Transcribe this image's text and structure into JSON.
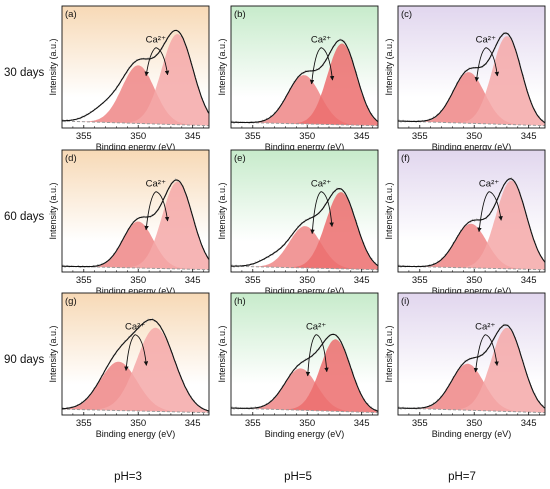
{
  "figure": {
    "row_labels": [
      "30 days",
      "60 days",
      "90 days"
    ],
    "col_labels": [
      "pH=3",
      "pH=5",
      "pH=7"
    ],
    "colors": {
      "bg_ph3": "#f7d9b6",
      "bg_ph5": "#c7ebcb",
      "bg_ph7": "#e1d6ee",
      "peak_left": "#ef8686",
      "peak_right": "#f4a8a8",
      "peak_strong": "#ec6d6d",
      "envelope": "#111111",
      "baseline": "#9a9a9a",
      "raw": "#b4b4b4"
    }
  },
  "chart_data": [
    {
      "panel": "(a)",
      "type": "area",
      "title": "",
      "xlabel": "Binding energy (eV)",
      "ylabel": "Intensity (a.u.)",
      "xlim": [
        357,
        343.5
      ],
      "ylim": [
        0,
        1.05
      ],
      "x_reversed": true,
      "xticks": [
        355,
        350,
        345
      ],
      "annotation": "Ca²⁺",
      "series": [
        {
          "name": "",
          "center": 350.0,
          "amp": 0.5,
          "sigma": 1.5
        },
        {
          "name": "",
          "center": 346.4,
          "amp": 0.78,
          "sigma": 1.45
        }
      ],
      "baseline": [
        0.06,
        0.02
      ],
      "shoulder": {
        "center": 353.0,
        "amp": 0.12,
        "sigma": 1.4
      }
    },
    {
      "panel": "(b)",
      "type": "area",
      "title": "",
      "xlabel": "Binding energy (eV)",
      "ylabel": "Intensity (a.u.)",
      "xlim": [
        357,
        343.5
      ],
      "ylim": [
        0,
        1.05
      ],
      "x_reversed": true,
      "xticks": [
        355,
        350,
        345
      ],
      "annotation": "Ca²⁺",
      "series": [
        {
          "name": "",
          "center": 350.3,
          "amp": 0.42,
          "sigma": 1.5
        },
        {
          "name": "",
          "center": 346.8,
          "amp": 0.7,
          "sigma": 1.35
        }
      ],
      "baseline": [
        0.05,
        0.02
      ]
    },
    {
      "panel": "(c)",
      "type": "area",
      "title": "",
      "xlabel": "Binding energy (eV)",
      "ylabel": "Intensity (a.u.)",
      "xlim": [
        357,
        343.5
      ],
      "ylim": [
        0,
        1.05
      ],
      "x_reversed": true,
      "xticks": [
        355,
        350,
        345
      ],
      "annotation": "Ca²⁺",
      "series": [
        {
          "name": "",
          "center": 350.5,
          "amp": 0.44,
          "sigma": 1.45
        },
        {
          "name": "",
          "center": 347.0,
          "amp": 0.76,
          "sigma": 1.35
        }
      ],
      "baseline": [
        0.06,
        0.02
      ]
    },
    {
      "panel": "(d)",
      "type": "area",
      "title": "",
      "xlabel": "Binding energy (eV)",
      "ylabel": "Intensity (a.u.)",
      "xlim": [
        357,
        343.5
      ],
      "ylim": [
        0,
        1.05
      ],
      "x_reversed": true,
      "xticks": [
        355,
        350,
        345
      ],
      "annotation": "Ca²⁺",
      "series": [
        {
          "name": "",
          "center": 350.0,
          "amp": 0.4,
          "sigma": 1.4
        },
        {
          "name": "",
          "center": 346.4,
          "amp": 0.75,
          "sigma": 1.4
        }
      ],
      "baseline": [
        0.05,
        0.02
      ]
    },
    {
      "panel": "(e)",
      "type": "area",
      "title": "",
      "xlabel": "Binding energy (eV)",
      "ylabel": "Intensity (a.u.)",
      "xlim": [
        357,
        343.5
      ],
      "ylim": [
        0,
        1.05
      ],
      "x_reversed": true,
      "xticks": [
        355,
        350,
        345
      ],
      "annotation": "Ca²⁺",
      "series": [
        {
          "name": "",
          "center": 350.2,
          "amp": 0.36,
          "sigma": 1.45
        },
        {
          "name": "",
          "center": 346.9,
          "amp": 0.66,
          "sigma": 1.4
        }
      ],
      "baseline": [
        0.05,
        0.02
      ],
      "shoulder": {
        "center": 353.2,
        "amp": 0.07,
        "sigma": 1.2
      }
    },
    {
      "panel": "(f)",
      "type": "area",
      "title": "",
      "xlabel": "Binding energy (eV)",
      "ylabel": "Intensity (a.u.)",
      "xlim": [
        357,
        343.5
      ],
      "ylim": [
        0,
        1.05
      ],
      "x_reversed": true,
      "xticks": [
        355,
        350,
        345
      ],
      "annotation": "Ca²⁺",
      "series": [
        {
          "name": "",
          "center": 350.3,
          "amp": 0.38,
          "sigma": 1.45
        },
        {
          "name": "",
          "center": 346.6,
          "amp": 0.76,
          "sigma": 1.4
        }
      ],
      "baseline": [
        0.05,
        0.02
      ]
    },
    {
      "panel": "(g)",
      "type": "area",
      "title": "",
      "xlabel": "Binding energy (eV)",
      "ylabel": "Intensity (a.u.)",
      "xlim": [
        357,
        343.5
      ],
      "ylim": [
        0,
        1.05
      ],
      "x_reversed": true,
      "xticks": [
        355,
        350,
        345
      ],
      "annotation": "Ca²⁺",
      "series": [
        {
          "name": "",
          "center": 351.8,
          "amp": 0.42,
          "sigma": 1.7
        },
        {
          "name": "",
          "center": 348.4,
          "amp": 0.72,
          "sigma": 1.75
        }
      ],
      "baseline": [
        0.05,
        0.02
      ]
    },
    {
      "panel": "(h)",
      "type": "area",
      "title": "",
      "xlabel": "Binding energy (eV)",
      "ylabel": "Intensity (a.u.)",
      "xlim": [
        357,
        343.5
      ],
      "ylim": [
        0,
        1.05
      ],
      "x_reversed": true,
      "xticks": [
        355,
        350,
        345
      ],
      "annotation": "Ca²⁺",
      "series": [
        {
          "name": "",
          "center": 350.6,
          "amp": 0.36,
          "sigma": 1.5
        },
        {
          "name": "",
          "center": 347.4,
          "amp": 0.62,
          "sigma": 1.4
        }
      ],
      "baseline": [
        0.06,
        0.02
      ]
    },
    {
      "panel": "(i)",
      "type": "area",
      "title": "",
      "xlabel": "Binding energy (eV)",
      "ylabel": "Intensity (a.u.)",
      "xlim": [
        357,
        343.5
      ],
      "ylim": [
        0,
        1.05
      ],
      "x_reversed": true,
      "xticks": [
        355,
        350,
        345
      ],
      "annotation": "Ca²⁺",
      "series": [
        {
          "name": "",
          "center": 350.6,
          "amp": 0.4,
          "sigma": 1.5
        },
        {
          "name": "",
          "center": 347.0,
          "amp": 0.72,
          "sigma": 1.45
        }
      ],
      "baseline": [
        0.06,
        0.02
      ]
    }
  ]
}
